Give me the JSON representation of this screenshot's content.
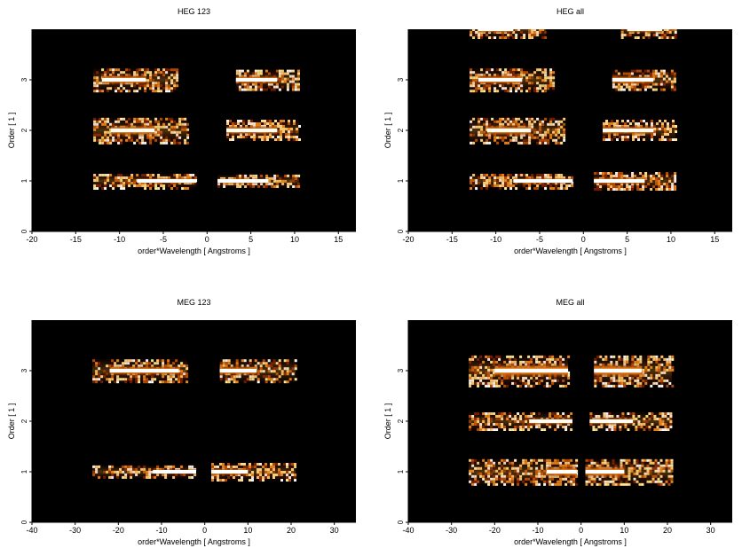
{
  "chart_data": [
    {
      "type": "heatmap",
      "title": "HEG 123",
      "xlabel": "order*Wavelength [ Angstroms ]",
      "ylabel": "Order [ 1 ]",
      "xlim": [
        -20,
        17
      ],
      "ylim": [
        0,
        4
      ],
      "xticks": [
        -20,
        -15,
        -10,
        -5,
        0,
        5,
        10,
        15
      ],
      "yticks": [
        0,
        1,
        2,
        3
      ],
      "background": "#000000",
      "bands": [
        {
          "order": 1,
          "x_from": -13,
          "x_to": -1.2,
          "core": [
            -8,
            -1.2
          ],
          "thickness": 0.28
        },
        {
          "order": 1,
          "x_from": 1.2,
          "x_to": 10.5,
          "core": [
            1.2,
            7
          ],
          "thickness": 0.25
        },
        {
          "order": 2,
          "x_from": -13,
          "x_to": -2.2,
          "core": [
            -11,
            -6
          ],
          "thickness": 0.5
        },
        {
          "order": 2,
          "x_from": 2.2,
          "x_to": 10.5,
          "core": [
            2.2,
            8
          ],
          "thickness": 0.42
        },
        {
          "order": 3,
          "x_from": -13,
          "x_to": -3.3,
          "core": [
            -12,
            -7
          ],
          "thickness": 0.45
        },
        {
          "order": 3,
          "x_from": 3.3,
          "x_to": 10.5,
          "core": [
            3.3,
            8
          ],
          "thickness": 0.4
        }
      ]
    },
    {
      "type": "heatmap",
      "title": "HEG all",
      "xlabel": "order*Wavelength [ Angstroms ]",
      "ylabel": "Order [ 1 ]",
      "xlim": [
        -20,
        17
      ],
      "ylim": [
        0,
        4
      ],
      "xticks": [
        -20,
        -15,
        -10,
        -5,
        0,
        5,
        10,
        15
      ],
      "yticks": [
        0,
        1,
        2,
        3
      ],
      "background": "#000000",
      "bands": [
        {
          "order": 1,
          "x_from": -13,
          "x_to": -1.2,
          "core": [
            -8,
            -1.2
          ],
          "thickness": 0.28
        },
        {
          "order": 1,
          "x_from": 1.2,
          "x_to": 10.5,
          "core": [
            1.2,
            7
          ],
          "thickness": 0.35
        },
        {
          "order": 2,
          "x_from": -13,
          "x_to": -2.2,
          "core": [
            -11,
            -6
          ],
          "thickness": 0.5
        },
        {
          "order": 2,
          "x_from": 2.2,
          "x_to": 10.5,
          "core": [
            2.2,
            8
          ],
          "thickness": 0.42
        },
        {
          "order": 3,
          "x_from": -13,
          "x_to": -3.3,
          "core": [
            -12,
            -7
          ],
          "thickness": 0.45
        },
        {
          "order": 3,
          "x_from": 3.3,
          "x_to": 10.5,
          "core": [
            3.3,
            8
          ],
          "thickness": 0.4
        },
        {
          "order": 4,
          "x_from": -13,
          "x_to": -4.3,
          "core": [
            -12,
            -8
          ],
          "thickness": 0.35
        },
        {
          "order": 4,
          "x_from": 4.3,
          "x_to": 10.5,
          "core": [
            5,
            9
          ],
          "thickness": 0.35
        }
      ]
    },
    {
      "type": "heatmap",
      "title": "MEG 123",
      "xlabel": "order*Wavelength [ Angstroms ]",
      "ylabel": "Order [ 1 ]",
      "xlim": [
        -40,
        35
      ],
      "ylim": [
        0,
        4
      ],
      "xticks": [
        -40,
        -30,
        -20,
        -10,
        0,
        10,
        20,
        30
      ],
      "yticks": [
        0,
        1,
        2,
        3
      ],
      "background": "#000000",
      "bands": [
        {
          "order": 1,
          "x_from": -26,
          "x_to": -2,
          "core": [
            -12,
            -2
          ],
          "thickness": 0.25
        },
        {
          "order": 1,
          "x_from": 1.5,
          "x_to": 21,
          "core": [
            1.5,
            10
          ],
          "thickness": 0.35
        },
        {
          "order": 3,
          "x_from": -26,
          "x_to": -4,
          "core": [
            -22,
            -6
          ],
          "thickness": 0.45
        },
        {
          "order": 3,
          "x_from": 3.5,
          "x_to": 21,
          "core": [
            3.5,
            12
          ],
          "thickness": 0.45
        }
      ]
    },
    {
      "type": "heatmap",
      "title": "MEG all",
      "xlabel": "order*Wavelength [ Angstroms ]",
      "ylabel": "Order [ 1 ]",
      "xlim": [
        -40,
        35
      ],
      "ylim": [
        0,
        4
      ],
      "xticks": [
        -40,
        -30,
        -20,
        -10,
        0,
        10,
        20,
        30
      ],
      "yticks": [
        0,
        1,
        2,
        3
      ],
      "background": "#000000",
      "bands": [
        {
          "order": 1,
          "x_from": -26,
          "x_to": -1,
          "core": [
            -8,
            -1
          ],
          "thickness": 0.5
        },
        {
          "order": 1,
          "x_from": 1,
          "x_to": 21,
          "core": [
            1,
            10
          ],
          "thickness": 0.5
        },
        {
          "order": 2,
          "x_from": -26,
          "x_to": -2,
          "core": [
            -12,
            -2
          ],
          "thickness": 0.35
        },
        {
          "order": 2,
          "x_from": 2,
          "x_to": 21,
          "core": [
            2,
            12
          ],
          "thickness": 0.35
        },
        {
          "order": 3,
          "x_from": -26,
          "x_to": -3,
          "core": [
            -20,
            -3
          ],
          "thickness": 0.6
        },
        {
          "order": 3,
          "x_from": 3,
          "x_to": 21,
          "core": [
            3,
            14
          ],
          "thickness": 0.6
        }
      ]
    }
  ]
}
